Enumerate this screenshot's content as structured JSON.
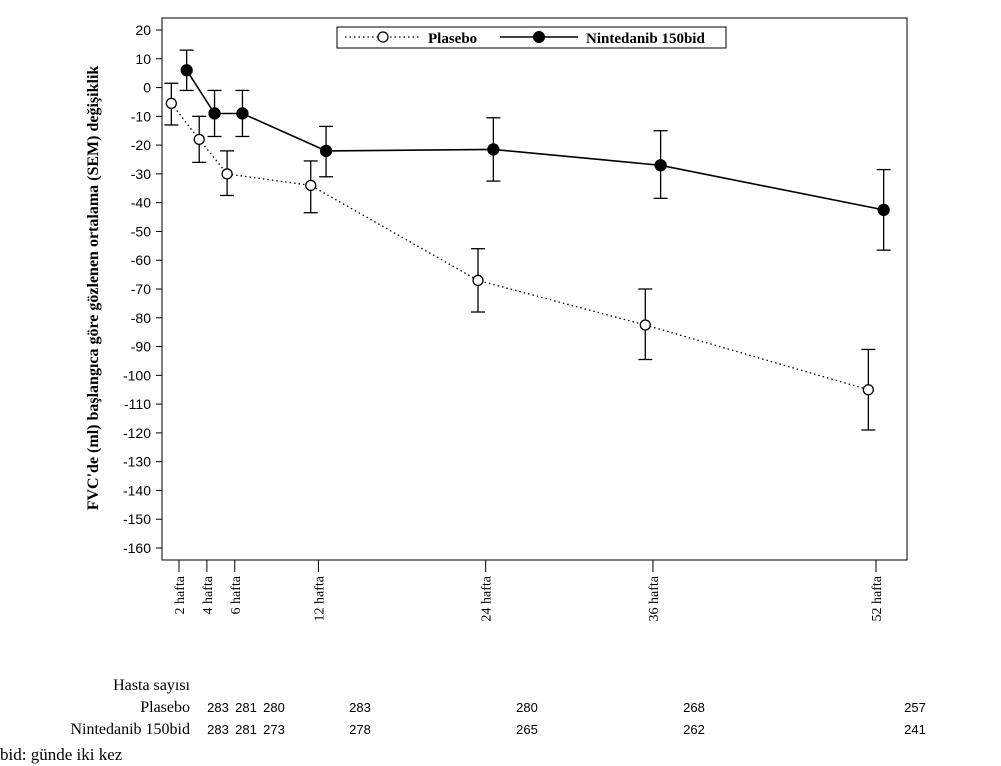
{
  "chart_data": {
    "type": "line",
    "ylabel": "FVC'de (ml) başlangıca göre gözlenen ortalama (SEM) değişiklik",
    "ylim": [
      -165,
      22
    ],
    "yticks": [
      20,
      10,
      0,
      -10,
      -20,
      -30,
      -40,
      -50,
      -60,
      -70,
      -80,
      -90,
      -100,
      -110,
      -120,
      -130,
      -140,
      -150,
      -160
    ],
    "xlim": [
      0,
      54.5
    ],
    "xticks": [
      {
        "value": 2,
        "label": "2 hafta"
      },
      {
        "value": 4,
        "label": "4 hafta"
      },
      {
        "value": 6,
        "label": "6 hafta"
      },
      {
        "value": 12,
        "label": "12 hafta"
      },
      {
        "value": 24,
        "label": "24 hafta"
      },
      {
        "value": 36,
        "label": "36 hafta"
      },
      {
        "value": 52,
        "label": "52 hafta"
      }
    ],
    "legend_position": "top-center",
    "grid": false,
    "series": [
      {
        "name": "Plasebo",
        "style": "dotted",
        "marker": "open-circle",
        "color": "#000000",
        "x": [
          2,
          4,
          6,
          12,
          24,
          36,
          52
        ],
        "y": [
          -5.5,
          -18,
          -30,
          -34,
          -67,
          -82.5,
          -105
        ],
        "err_low": [
          -13,
          -26,
          -37.5,
          -43.5,
          -78,
          -94.5,
          -119
        ],
        "err_high": [
          1.5,
          -10,
          -22,
          -25.5,
          -56,
          -70,
          -91
        ]
      },
      {
        "name": "Nintedanib 150bid",
        "style": "solid",
        "marker": "filled-circle",
        "color": "#000000",
        "x": [
          2,
          4,
          6,
          12,
          24,
          36,
          52
        ],
        "y": [
          6,
          -9,
          -9,
          -22,
          -21.5,
          -27,
          -42.5
        ],
        "err_low": [
          -1,
          -17,
          -17,
          -31,
          -32.5,
          -38.5,
          -56.5
        ],
        "err_high": [
          13,
          -1,
          -1,
          -13.5,
          -10.5,
          -15,
          -28.5
        ]
      }
    ]
  },
  "patients_table": {
    "header": "Hasta sayısı",
    "rows": [
      {
        "name": "Plasebo",
        "values": [
          "283",
          "281",
          "280",
          "283",
          "280",
          "268",
          "257"
        ]
      },
      {
        "name": "Nintedanib 150bid",
        "values": [
          "283",
          "281",
          "273",
          "278",
          "265",
          "262",
          "241"
        ]
      }
    ]
  },
  "footnote": "bid: günde iki kez"
}
